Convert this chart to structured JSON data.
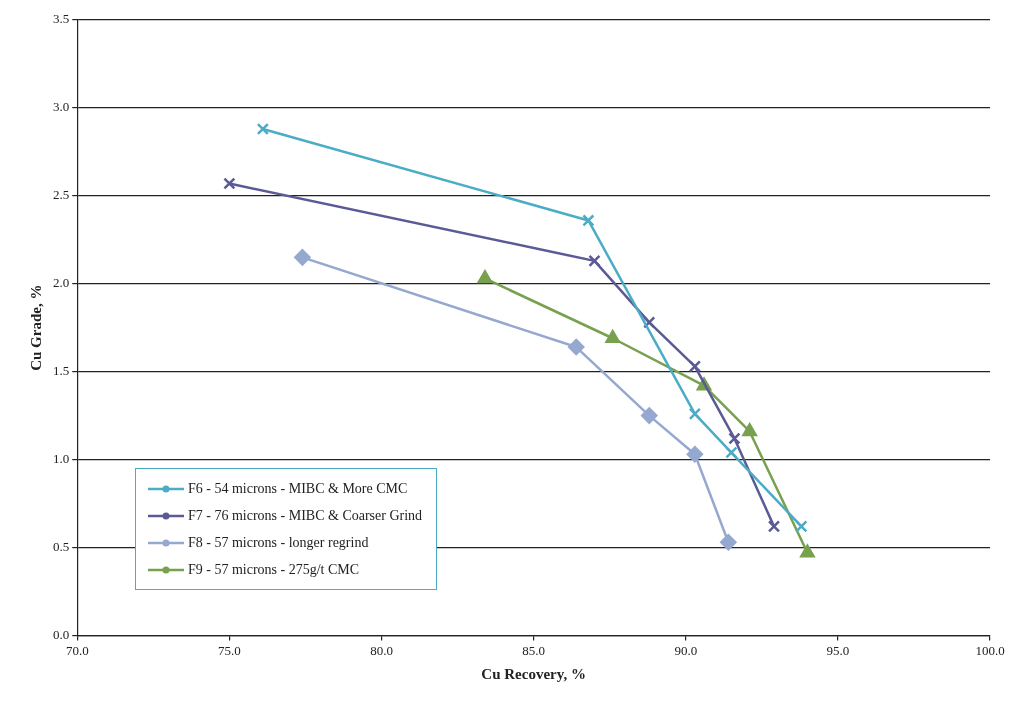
{
  "chart_data": {
    "type": "line",
    "xlabel": "Cu Recovery, %",
    "ylabel": "Cu Grade, %",
    "xlim": [
      70,
      100
    ],
    "xticks": [
      {
        "value": 70,
        "label": "70.0"
      },
      {
        "value": 75,
        "label": "75.0"
      },
      {
        "value": 80,
        "label": "80.0"
      },
      {
        "value": 85,
        "label": "85.0"
      },
      {
        "value": 90,
        "label": "90.0"
      },
      {
        "value": 95,
        "label": "95.0"
      },
      {
        "value": 100,
        "label": "100.0"
      }
    ],
    "ylim": [
      0,
      3.5
    ],
    "yticks": [
      {
        "value": 0,
        "label": "0.0"
      },
      {
        "value": 0.5,
        "label": "0.5"
      },
      {
        "value": 1,
        "label": "1.0"
      },
      {
        "value": 1.5,
        "label": "1.5"
      },
      {
        "value": 2,
        "label": "2.0"
      },
      {
        "value": 2.5,
        "label": "2.5"
      },
      {
        "value": 3,
        "label": "3.0"
      },
      {
        "value": 3.5,
        "label": "3.5"
      }
    ],
    "grid": "y",
    "legend": "bottom left",
    "line_style": "solid",
    "series": [
      {
        "name": "F6 - 54 microns - MIBC & More CMC",
        "color": "#4bacc6",
        "marker": "cross",
        "x": [
          76.1,
          86.8,
          90.3,
          91.5,
          93.8
        ],
        "values": [
          2.88,
          2.36,
          1.26,
          1.04,
          0.62
        ]
      },
      {
        "name": "F7 - 76 microns - MIBC & Coarser Grind",
        "color": "#5a5a96",
        "marker": "cross",
        "x": [
          75.0,
          87.0,
          88.8,
          90.3,
          91.6,
          92.9
        ],
        "values": [
          2.57,
          2.13,
          1.78,
          1.53,
          1.12,
          0.62
        ]
      },
      {
        "name": "F8 - 57 microns - longer regrind",
        "color": "#95a8d0",
        "marker": "diamond",
        "x": [
          77.4,
          86.4,
          88.8,
          90.3,
          91.4
        ],
        "values": [
          2.15,
          1.64,
          1.25,
          1.03,
          0.53
        ]
      },
      {
        "name": "F9 - 57 microns - 275g/t CMC",
        "color": "#77a04f",
        "marker": "triangle",
        "x": [
          83.4,
          87.6,
          90.6,
          92.1,
          94.0
        ],
        "values": [
          2.03,
          1.69,
          1.42,
          1.16,
          0.47
        ]
      }
    ]
  }
}
